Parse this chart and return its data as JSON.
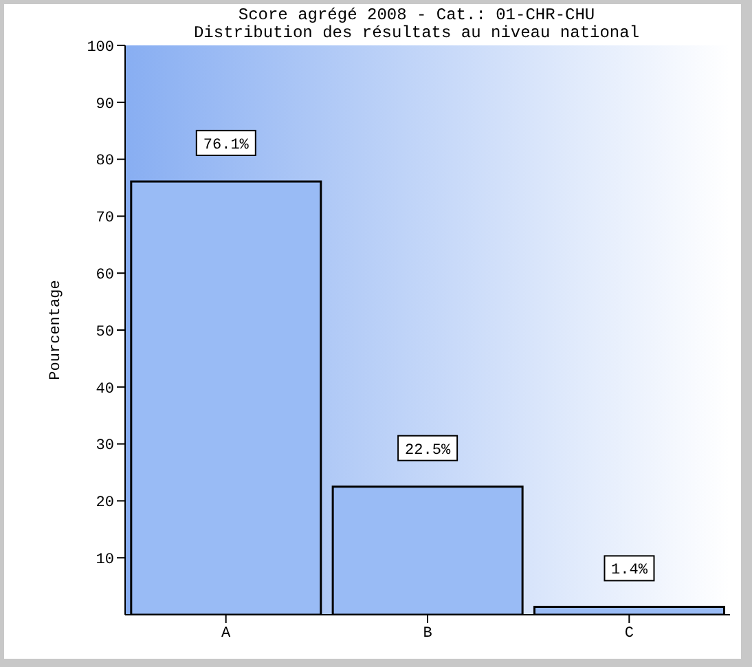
{
  "chart_data": {
    "type": "bar",
    "title": "Score agrégé 2008 - Cat.: 01-CHR-CHU",
    "subtitle": "Distribution des résultats au niveau national",
    "ylabel": "Pourcentage",
    "categories": [
      "A",
      "B",
      "C"
    ],
    "values": [
      76.1,
      22.5,
      1.4
    ],
    "value_labels": [
      "76.1%",
      "22.5%",
      "1.4%"
    ],
    "color": "#99bbf5",
    "ylim": [
      0,
      100
    ],
    "yticks": [
      10,
      20,
      30,
      40,
      50,
      60,
      70,
      80,
      90,
      100
    ],
    "grid": false
  }
}
